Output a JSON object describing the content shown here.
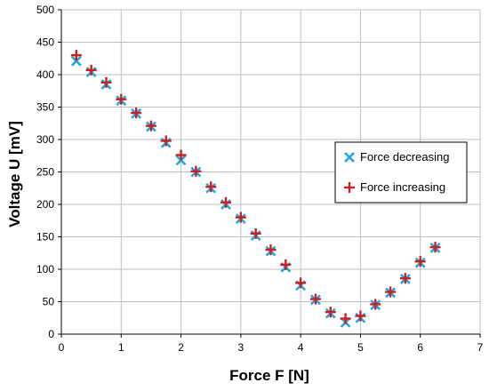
{
  "chart_data": {
    "type": "scatter",
    "title": "",
    "xlabel": "Force F [N]",
    "ylabel": "Voltage U [mV]",
    "xlim": [
      0,
      7
    ],
    "ylim": [
      0,
      500
    ],
    "xticks": [
      "0",
      "1",
      "2",
      "3",
      "4",
      "5",
      "6",
      "7"
    ],
    "yticks": [
      "0",
      "50",
      "100",
      "150",
      "200",
      "250",
      "300",
      "350",
      "400",
      "450",
      "500"
    ],
    "grid": true,
    "legend_position": "right",
    "series": [
      {
        "name": "Force decreasing",
        "marker": "x",
        "color": "#22a8e0",
        "x": [
          0.25,
          0.5,
          0.75,
          1.0,
          1.25,
          1.5,
          1.75,
          2.0,
          2.25,
          2.5,
          2.75,
          3.0,
          3.25,
          3.5,
          3.75,
          4.0,
          4.25,
          4.5,
          4.75,
          5.0,
          5.25,
          5.5,
          5.75,
          6.0,
          6.25
        ],
        "y": [
          421,
          404,
          385,
          360,
          340,
          320,
          295,
          268,
          250,
          225,
          200,
          178,
          152,
          128,
          103,
          75,
          53,
          32,
          18,
          25,
          45,
          64,
          85,
          110,
          133
        ]
      },
      {
        "name": "Force increasing",
        "marker": "+",
        "color": "#cc1f1f",
        "x": [
          0.25,
          0.5,
          0.75,
          1.0,
          1.25,
          1.5,
          1.75,
          2.0,
          2.25,
          2.5,
          2.75,
          3.0,
          3.25,
          3.5,
          3.75,
          4.0,
          4.25,
          4.5,
          4.75,
          5.0,
          5.25,
          5.5,
          5.75,
          6.0,
          6.25
        ],
        "y": [
          430,
          407,
          388,
          362,
          341,
          321,
          298,
          276,
          251,
          227,
          203,
          180,
          155,
          130,
          107,
          79,
          54,
          34,
          24,
          28,
          46,
          65,
          86,
          112,
          134
        ]
      }
    ]
  }
}
